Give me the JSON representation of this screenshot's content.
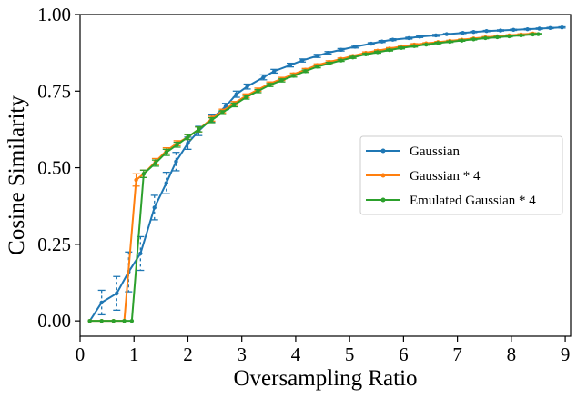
{
  "chart_data": {
    "type": "line",
    "xlabel": "Oversampling Ratio",
    "ylabel": "Cosine Similarity",
    "xlim": [
      0,
      9.1
    ],
    "ylim": [
      -0.05,
      1.0
    ],
    "xticks": [
      "0",
      "1",
      "2",
      "3",
      "4",
      "5",
      "6",
      "7",
      "8",
      "9"
    ],
    "yticks": [
      "0.00",
      "0.25",
      "0.50",
      "0.75",
      "1.00"
    ],
    "grid": false,
    "legend_position": "center-right",
    "series": [
      {
        "name": "Gaussian",
        "color": "#1f77b4",
        "x": [
          0.18,
          0.4,
          0.68,
          0.9,
          1.12,
          1.38,
          1.6,
          1.78,
          2.0,
          2.2,
          2.44,
          2.7,
          2.9,
          3.1,
          3.4,
          3.6,
          3.9,
          4.12,
          4.4,
          4.6,
          4.84,
          5.1,
          5.4,
          5.6,
          5.8,
          6.1,
          6.3,
          6.6,
          6.8,
          7.1,
          7.3,
          7.54,
          7.8,
          8.04,
          8.3,
          8.52,
          8.72,
          8.94
        ],
        "y": [
          0.0,
          0.06,
          0.09,
          0.16,
          0.22,
          0.37,
          0.45,
          0.52,
          0.58,
          0.62,
          0.66,
          0.7,
          0.74,
          0.765,
          0.795,
          0.815,
          0.835,
          0.85,
          0.865,
          0.875,
          0.885,
          0.895,
          0.905,
          0.912,
          0.918,
          0.923,
          0.928,
          0.932,
          0.936,
          0.94,
          0.943,
          0.946,
          0.948,
          0.95,
          0.952,
          0.954,
          0.956,
          0.958
        ],
        "err": [
          0.0,
          0.04,
          0.055,
          0.065,
          0.055,
          0.04,
          0.035,
          0.03,
          0.02,
          0.015,
          0.012,
          0.01,
          0.01,
          0.008,
          0.008,
          0.006,
          0.006,
          0.005,
          0.005,
          0.004,
          0.004,
          0.004,
          0.003,
          0.003,
          0.003,
          0.003,
          0.003,
          0.003,
          0.002,
          0.002,
          0.002,
          0.002,
          0.002,
          0.002,
          0.002,
          0.002,
          0.002,
          0.002
        ]
      },
      {
        "name": "Gaussian * 4",
        "color": "#ff7f0e",
        "x": [
          0.18,
          0.4,
          0.62,
          0.82,
          1.04,
          1.18,
          1.4,
          1.6,
          1.8,
          2.0,
          2.2,
          2.44,
          2.64,
          2.86,
          3.08,
          3.3,
          3.52,
          3.74,
          3.96,
          4.18,
          4.4,
          4.62,
          4.84,
          5.06,
          5.3,
          5.52,
          5.74,
          5.96,
          6.2,
          6.42,
          6.64,
          6.86,
          7.08,
          7.3,
          7.52,
          7.74,
          7.96,
          8.18,
          8.4
        ],
        "y": [
          0.0,
          0.0,
          0.0,
          0.0,
          0.46,
          0.48,
          0.52,
          0.555,
          0.58,
          0.6,
          0.625,
          0.66,
          0.685,
          0.71,
          0.735,
          0.755,
          0.775,
          0.79,
          0.805,
          0.82,
          0.835,
          0.845,
          0.855,
          0.865,
          0.875,
          0.882,
          0.889,
          0.896,
          0.902,
          0.906,
          0.91,
          0.914,
          0.918,
          0.922,
          0.926,
          0.929,
          0.932,
          0.935,
          0.938
        ],
        "err": [
          0.0,
          0.0,
          0.0,
          0.0,
          0.02,
          0.012,
          0.01,
          0.01,
          0.008,
          0.008,
          0.008,
          0.008,
          0.006,
          0.006,
          0.006,
          0.005,
          0.005,
          0.005,
          0.004,
          0.004,
          0.004,
          0.004,
          0.003,
          0.003,
          0.003,
          0.003,
          0.003,
          0.003,
          0.003,
          0.002,
          0.002,
          0.002,
          0.002,
          0.002,
          0.002,
          0.002,
          0.002,
          0.002,
          0.002
        ]
      },
      {
        "name": "Emulated Gaussian * 4",
        "color": "#2ca02c",
        "x": [
          0.18,
          0.4,
          0.62,
          0.82,
          0.96,
          1.18,
          1.4,
          1.6,
          1.8,
          2.0,
          2.2,
          2.44,
          2.64,
          2.86,
          3.08,
          3.3,
          3.52,
          3.74,
          3.96,
          4.18,
          4.4,
          4.62,
          4.84,
          5.06,
          5.3,
          5.52,
          5.74,
          5.96,
          6.2,
          6.42,
          6.64,
          6.86,
          7.08,
          7.3,
          7.52,
          7.74,
          7.96,
          8.18,
          8.4,
          8.5
        ],
        "y": [
          0.0,
          0.0,
          0.0,
          0.0,
          0.0,
          0.48,
          0.515,
          0.55,
          0.575,
          0.6,
          0.625,
          0.655,
          0.68,
          0.705,
          0.73,
          0.75,
          0.77,
          0.785,
          0.8,
          0.815,
          0.83,
          0.84,
          0.85,
          0.86,
          0.87,
          0.877,
          0.884,
          0.891,
          0.897,
          0.902,
          0.907,
          0.911,
          0.915,
          0.919,
          0.923,
          0.926,
          0.929,
          0.932,
          0.935,
          0.936
        ],
        "err": [
          0.0,
          0.0,
          0.0,
          0.0,
          0.0,
          0.012,
          0.01,
          0.01,
          0.008,
          0.008,
          0.008,
          0.008,
          0.006,
          0.006,
          0.006,
          0.005,
          0.005,
          0.005,
          0.004,
          0.004,
          0.004,
          0.004,
          0.003,
          0.003,
          0.003,
          0.003,
          0.003,
          0.003,
          0.003,
          0.002,
          0.002,
          0.002,
          0.002,
          0.002,
          0.002,
          0.002,
          0.002,
          0.002,
          0.002,
          0.002
        ]
      }
    ]
  }
}
